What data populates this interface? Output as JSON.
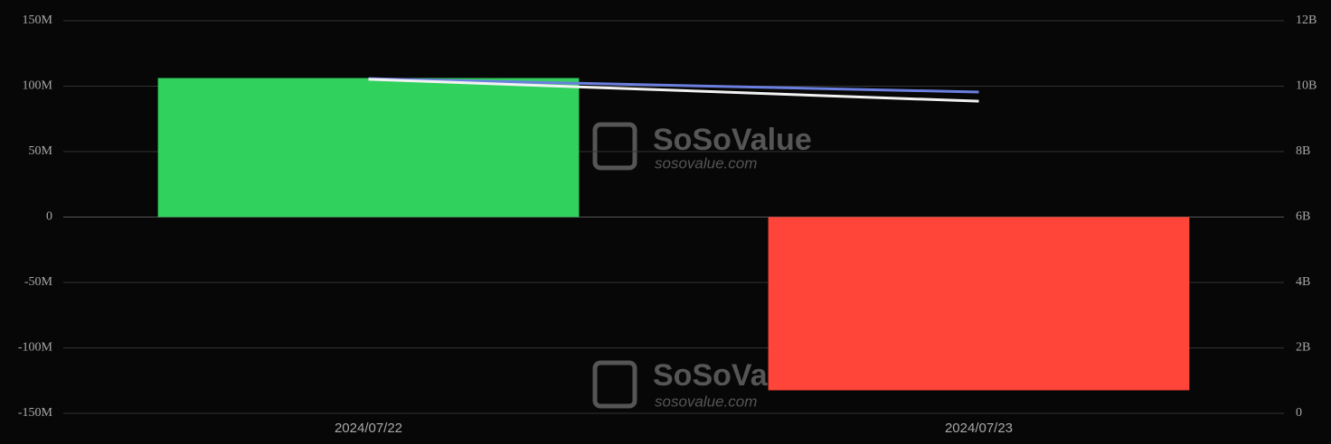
{
  "chart_data": {
    "type": "bar",
    "categories": [
      "2024/07/22",
      "2024/07/23"
    ],
    "series": [
      {
        "type": "bar",
        "positive_color": "#30d15c",
        "negative_color": "#ff453a",
        "values": [
          106200000,
          -132400000
        ]
      },
      {
        "type": "line",
        "axis": "y2",
        "color": "#6b7fe0",
        "values": [
          10230000000,
          9820000000
        ]
      },
      {
        "type": "line",
        "axis": "y2",
        "color": "#f2f2f2",
        "values": [
          10210000000,
          9540000000
        ]
      }
    ],
    "ylim": [
      -150000000,
      150000000
    ],
    "yticks": [
      {
        "value": -150000000,
        "label": "-150M"
      },
      {
        "value": -100000000,
        "label": "-100M"
      },
      {
        "value": -50000000,
        "label": "-50M"
      },
      0,
      {
        "value": 50000000,
        "label": "50M"
      },
      {
        "value": 100000000,
        "label": "100M"
      },
      {
        "value": 150000000,
        "label": "150M"
      }
    ],
    "y2lim": [
      0,
      12000000000
    ],
    "y2ticks": [
      0,
      {
        "value": 2000000000,
        "label": "2B"
      },
      {
        "value": 4000000000,
        "label": "4B"
      },
      {
        "value": 6000000000,
        "label": "6B"
      },
      {
        "value": 8000000000,
        "label": "8B"
      },
      {
        "value": 10000000000,
        "label": "10B"
      },
      {
        "value": 12000000000,
        "label": "12B"
      }
    ],
    "grid": true,
    "watermark": {
      "brand": "SoSoValue",
      "site": "sosovalue.com"
    }
  }
}
